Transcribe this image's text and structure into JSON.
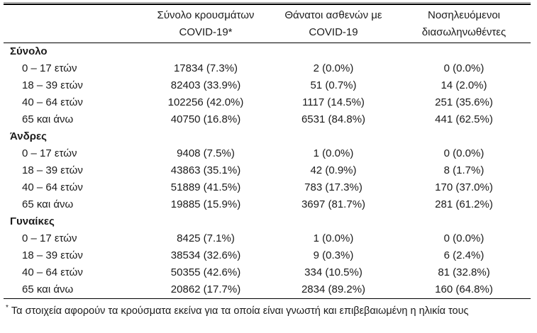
{
  "table": {
    "columns": [
      {
        "line1": "Σύνολο κρουσμάτων",
        "line2": "COVID-19*"
      },
      {
        "line1": "Θάνατοι ασθενών με",
        "line2": "COVID-19"
      },
      {
        "line1": "Νοσηλευόμενοι",
        "line2": "διασωληνωθέντες"
      }
    ],
    "sections": [
      {
        "title": "Σύνολο",
        "rows": [
          {
            "label": "0 – 17 ετών",
            "values": [
              "17834 (7.3%)",
              "2 (0.0%)",
              "0 (0.0%)"
            ]
          },
          {
            "label": "18 – 39 ετών",
            "values": [
              "82403 (33.9%)",
              "51 (0.7%)",
              "14 (2.0%)"
            ]
          },
          {
            "label": "40 – 64 ετών",
            "values": [
              "102256 (42.0%)",
              "1117 (14.5%)",
              "251 (35.6%)"
            ]
          },
          {
            "label": "65 και άνω",
            "values": [
              "40750 (16.8%)",
              "6531 (84.8%)",
              "441 (62.5%)"
            ]
          }
        ]
      },
      {
        "title": "Άνδρες",
        "rows": [
          {
            "label": "0 – 17 ετών",
            "values": [
              "9408 (7.5%)",
              "1 (0.0%)",
              "0 (0.0%)"
            ]
          },
          {
            "label": "18 – 39 ετών",
            "values": [
              "43863 (35.1%)",
              "42 (0.9%)",
              "8 (1.7%)"
            ]
          },
          {
            "label": "40 – 64 ετών",
            "values": [
              "51889 (41.5%)",
              "783 (17.3%)",
              "170 (37.0%)"
            ]
          },
          {
            "label": "65 και άνω",
            "values": [
              "19885 (15.9%)",
              "3697 (81.7%)",
              "281 (61.2%)"
            ]
          }
        ]
      },
      {
        "title": "Γυναίκες",
        "rows": [
          {
            "label": "0 – 17 ετών",
            "values": [
              "8425 (7.1%)",
              "1 (0.0%)",
              "0 (0.0%)"
            ]
          },
          {
            "label": "18 – 39 ετών",
            "values": [
              "38534 (32.6%)",
              "9 (0.3%)",
              "6 (2.4%)"
            ]
          },
          {
            "label": "40 – 64 ετών",
            "values": [
              "50355 (42.6%)",
              "334 (10.5%)",
              "81 (32.8%)"
            ]
          },
          {
            "label": "65 και άνω",
            "values": [
              "20862 (17.7%)",
              "2834 (89.2%)",
              "160 (64.8%)"
            ]
          }
        ]
      }
    ],
    "footnote": {
      "marker": "*",
      "text": "Τα στοιχεία αφορούν τα κρούσματα εκείνα για τα οποία είναι γνωστή και επιβεβαιωμένη η ηλικία τους"
    }
  },
  "colors": {
    "text": "#1b1b1b",
    "rule_dark": "#000000",
    "rule_light": "#8f8f8f",
    "background": "#ffffff"
  }
}
